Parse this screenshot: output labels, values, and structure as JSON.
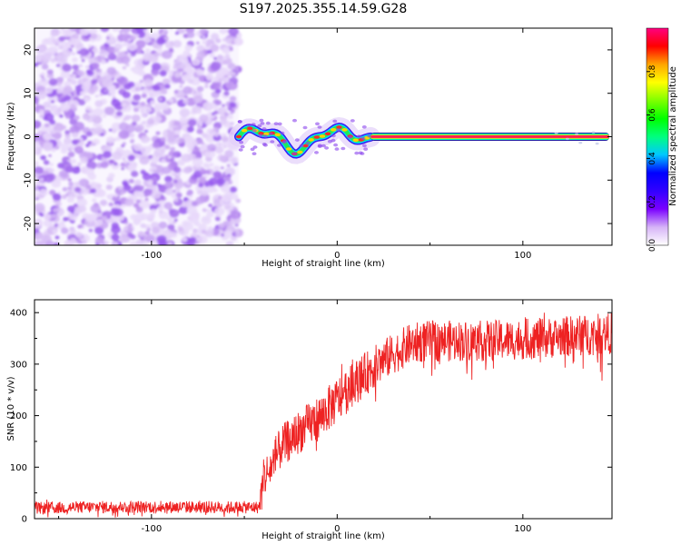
{
  "title": "S197.2025.355.14.59.G28",
  "chart_data": [
    {
      "type": "heatmap",
      "name": "spectrogram",
      "xlabel": "Height of straight line (km)",
      "ylabel": "Frequency (Hz)",
      "xlim": [
        -163,
        148
      ],
      "ylim": [
        -25,
        25
      ],
      "xticks": [
        -100,
        0,
        100
      ],
      "xtick_labels": [
        "-100",
        "0",
        "100"
      ],
      "yticks": [
        20,
        10,
        0,
        -10,
        -20
      ],
      "ytick_labels": [
        "20",
        "10",
        "0",
        "-10",
        "-20"
      ],
      "noise_region_x": [
        -163,
        -53
      ],
      "transition_region_x": [
        -53,
        18
      ],
      "steady_line_x": [
        18,
        148
      ],
      "steady_line_freq": 0,
      "colorbar": {
        "label": "Normalized spectral amplitude",
        "range": [
          0,
          1
        ],
        "ticks": [
          0.0,
          0.2,
          0.4,
          0.6,
          0.8
        ],
        "tick_labels": [
          "0.0",
          "0.2",
          "0.4",
          "0.6",
          "0.8"
        ],
        "colors": [
          "#ffffff",
          "#d6b4f7",
          "#7a00ff",
          "#3200ff",
          "#0000ff",
          "#00c8ff",
          "#00ff7f",
          "#00ff00",
          "#7fff00",
          "#ffff00",
          "#ffa500",
          "#ff0000",
          "#ff0080"
        ]
      }
    },
    {
      "type": "line",
      "name": "snr",
      "xlabel": "Height of straight line (km)",
      "ylabel": "SNR (10 * v/v)",
      "xlim": [
        -163,
        148
      ],
      "ylim": [
        0,
        425
      ],
      "xticks": [
        -100,
        0,
        100
      ],
      "xtick_labels": [
        "-100",
        "0",
        "100"
      ],
      "yticks": [
        0,
        100,
        200,
        300,
        400
      ],
      "ytick_labels": [
        "0",
        "100",
        "200",
        "300",
        "400"
      ],
      "color": "#ee2222",
      "trend_x": [
        -163,
        -140,
        -100,
        -60,
        -42,
        -40,
        -35,
        -30,
        -20,
        -10,
        0,
        10,
        20,
        30,
        40,
        50,
        80,
        110,
        148
      ],
      "trend_y": [
        20,
        22,
        23,
        22,
        22,
        75,
        105,
        140,
        170,
        195,
        230,
        265,
        295,
        320,
        340,
        345,
        345,
        350,
        360
      ],
      "noise_amplitude_x": [
        -163,
        -42,
        -40,
        0,
        30,
        148
      ],
      "noise_amplitude_y": [
        12,
        12,
        40,
        45,
        40,
        40
      ]
    }
  ]
}
